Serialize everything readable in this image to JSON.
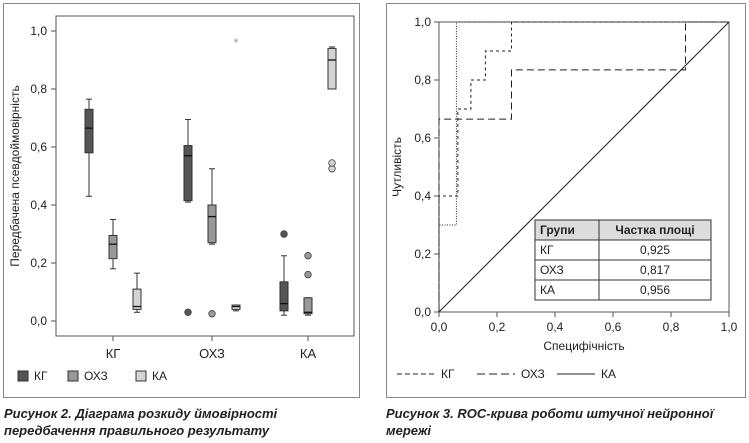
{
  "captions": {
    "left_line1": "Рисунок 2. Діаграма розкиду ймовірності",
    "left_line2": "передбачення правильного результату",
    "right_line1": "Рисунок 3. ROC-крива роботи штучної нейронної",
    "right_line2": "мережі"
  },
  "chart_data": [
    {
      "type": "box",
      "ylabel": "Передбачена псевдоймовірність",
      "ylim": [
        0,
        1.0
      ],
      "y_ticks": [
        "0,0",
        "0,2",
        "0,4",
        "0,6",
        "0,8",
        "1,0"
      ],
      "groups": [
        "КГ",
        "ОХЗ",
        "КА"
      ],
      "series": [
        {
          "name": "КГ",
          "color": "#555555",
          "boxes": [
            {
              "group": "КГ",
              "min": 0.43,
              "q1": 0.58,
              "median": 0.665,
              "q3": 0.73,
              "max": 0.765,
              "outliers": []
            },
            {
              "group": "ОХЗ",
              "min": 0.41,
              "q1": 0.415,
              "median": 0.57,
              "q3": 0.605,
              "max": 0.695,
              "outliers": [
                0.03
              ]
            },
            {
              "group": "КА",
              "min": 0.02,
              "q1": 0.035,
              "median": 0.06,
              "q3": 0.135,
              "max": 0.225,
              "outliers": [
                0.3
              ]
            }
          ]
        },
        {
          "name": "ОХЗ",
          "color": "#999999",
          "boxes": [
            {
              "group": "КГ",
              "min": 0.18,
              "q1": 0.215,
              "median": 0.265,
              "q3": 0.295,
              "max": 0.35,
              "outliers": []
            },
            {
              "group": "ОХЗ",
              "min": 0.265,
              "q1": 0.27,
              "median": 0.36,
              "q3": 0.4,
              "max": 0.525,
              "outliers": [
                0.025
              ]
            },
            {
              "group": "КА",
              "min": 0.02,
              "q1": 0.025,
              "median": 0.03,
              "q3": 0.08,
              "max": 0.08,
              "outliers": [
                0.16,
                0.225
              ]
            }
          ]
        },
        {
          "name": "КА",
          "color": "#d3d3d3",
          "boxes": [
            {
              "group": "КГ",
              "min": 0.03,
              "q1": 0.04,
              "median": 0.05,
              "q3": 0.11,
              "max": 0.165,
              "outliers": []
            },
            {
              "group": "ОХЗ",
              "min": 0.035,
              "q1": 0.04,
              "median": 0.05,
              "q3": 0.055,
              "max": 0.055,
              "outliers": [
                0.96
              ]
            },
            {
              "group": "КА",
              "min": 0.8,
              "q1": 0.8,
              "median": 0.9,
              "q3": 0.94,
              "max": 0.945,
              "outliers": [
                0.525,
                0.545
              ]
            }
          ]
        }
      ],
      "legend": {
        "position": "bottom",
        "items": [
          "КГ",
          "ОХЗ",
          "КА"
        ]
      },
      "extreme_marker": "*"
    },
    {
      "type": "line",
      "xlabel": "Специфічність",
      "ylabel": "Чутливість",
      "xlim": [
        0,
        1.0
      ],
      "ylim": [
        0,
        1.0
      ],
      "x_ticks": [
        "0,0",
        "0,2",
        "0,4",
        "0,6",
        "0,8",
        "1,0"
      ],
      "y_ticks": [
        "0,0",
        "0,2",
        "0,4",
        "0,6",
        "0,8",
        "1,0"
      ],
      "series": [
        {
          "name": "КГ",
          "style": "dashed-long",
          "x": [
            0,
            0,
            0.065,
            0.065,
            0.11,
            0.11,
            0.16,
            0.16,
            0.25,
            0.25,
            0.25,
            1.0
          ],
          "y": [
            0,
            0.4,
            0.4,
            0.7,
            0.7,
            0.8,
            0.8,
            0.9,
            0.9,
            1.0,
            1.0,
            1.0
          ]
        },
        {
          "name": "ОХЗ",
          "style": "dashed",
          "x": [
            0,
            0,
            0.25,
            0.25,
            0.85,
            0.85,
            1.0
          ],
          "y": [
            0,
            0.665,
            0.665,
            0.835,
            0.835,
            1.0,
            1.0
          ]
        },
        {
          "name": "КА",
          "style": "solid-dotted",
          "x": [
            0,
            0,
            0.06,
            0.06,
            1.0
          ],
          "y": [
            0,
            0.3,
            0.3,
            1.0,
            1.0
          ]
        },
        {
          "name": "",
          "style": "diagonal",
          "x": [
            0,
            1.0
          ],
          "y": [
            0,
            1.0
          ]
        }
      ],
      "legend": {
        "position": "bottom",
        "items": [
          "КГ",
          "ОХЗ",
          "КА"
        ]
      },
      "table": {
        "headers": [
          "Групи",
          "Частка площі"
        ],
        "rows": [
          [
            "КГ",
            "0,925"
          ],
          [
            "ОХЗ",
            "0,817"
          ],
          [
            "КА",
            "0,956"
          ]
        ]
      }
    }
  ]
}
